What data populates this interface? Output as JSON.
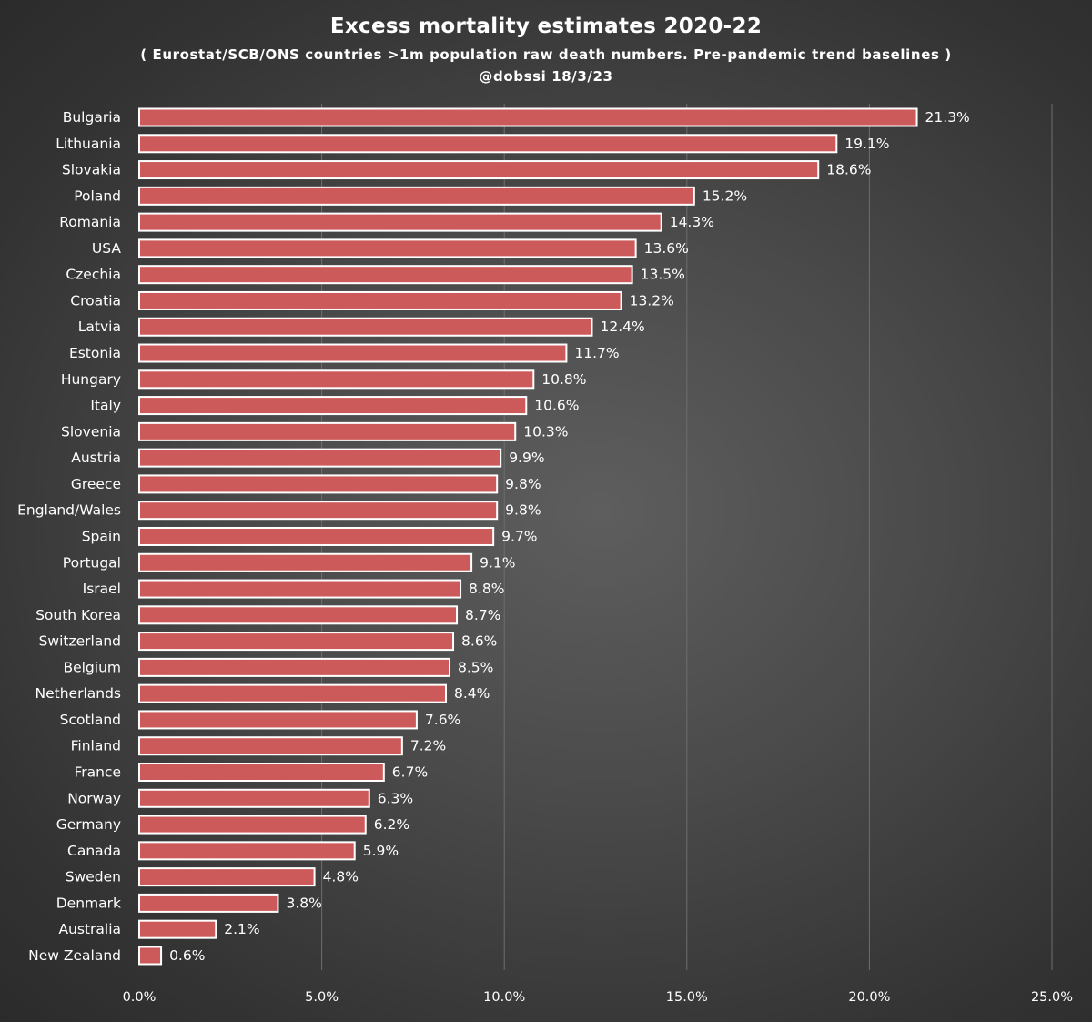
{
  "title": "Excess mortality estimates 2020-22",
  "subtitle": "( Eurostat/SCB/ONS countries >1m population  raw death numbers. Pre-pandemic trend baselines )",
  "credit": "@dobssi 18/3/23",
  "colors": {
    "bar_fill": "#cd5a5a",
    "bar_stroke": "#ffffff",
    "gridline": "#6e6e6e",
    "text": "#ffffff"
  },
  "chart_data": {
    "type": "bar",
    "orientation": "horizontal",
    "title": "Excess mortality estimates 2020-22",
    "categories": [
      "Bulgaria",
      "Lithuania",
      "Slovakia",
      "Poland",
      "Romania",
      "USA",
      "Czechia",
      "Croatia",
      "Latvia",
      "Estonia",
      "Hungary",
      "Italy",
      "Slovenia",
      "Austria",
      "Greece",
      "England/Wales",
      "Spain",
      "Portugal",
      "Israel",
      "South Korea",
      "Switzerland",
      "Belgium",
      "Netherlands",
      "Scotland",
      "Finland",
      "France",
      "Norway",
      "Germany",
      "Canada",
      "Sweden",
      "Denmark",
      "Australia",
      "New Zealand"
    ],
    "values": [
      21.3,
      19.1,
      18.6,
      15.2,
      14.3,
      13.6,
      13.5,
      13.2,
      12.4,
      11.7,
      10.8,
      10.6,
      10.3,
      9.9,
      9.8,
      9.8,
      9.7,
      9.1,
      8.8,
      8.7,
      8.6,
      8.5,
      8.4,
      7.6,
      7.2,
      6.7,
      6.3,
      6.2,
      5.9,
      4.8,
      3.8,
      2.1,
      0.6
    ],
    "value_labels": [
      "21.3%",
      "19.1%",
      "18.6%",
      "15.2%",
      "14.3%",
      "13.6%",
      "13.5%",
      "13.2%",
      "12.4%",
      "11.7%",
      "10.8%",
      "10.6%",
      "10.3%",
      "9.9%",
      "9.8%",
      "9.8%",
      "9.7%",
      "9.1%",
      "8.8%",
      "8.7%",
      "8.6%",
      "8.5%",
      "8.4%",
      "7.6%",
      "7.2%",
      "6.7%",
      "6.3%",
      "6.2%",
      "5.9%",
      "4.8%",
      "3.8%",
      "2.1%",
      "0.6%"
    ],
    "x_ticks": [
      0,
      5,
      10,
      15,
      20,
      25
    ],
    "x_tick_labels": [
      "0.0%",
      "5.0%",
      "10.0%",
      "15.0%",
      "20.0%",
      "25.0%"
    ],
    "xlim": [
      0,
      25
    ],
    "grid": "vertical",
    "data_labels": true
  }
}
